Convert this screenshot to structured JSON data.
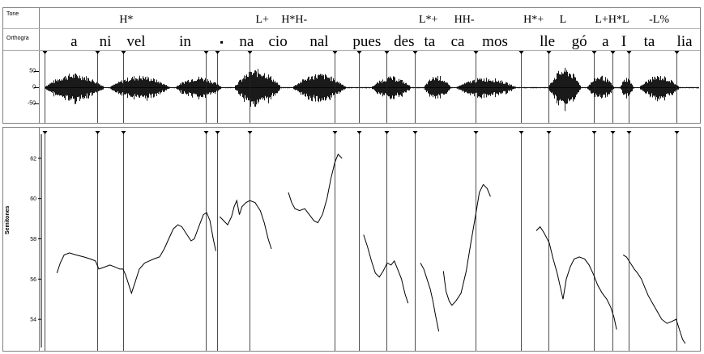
{
  "tiers": {
    "tone_label": "Tone",
    "ortho_label": "Orthogra"
  },
  "tones": [
    {
      "text": "H*",
      "t": 0.125
    },
    {
      "text": "L+",
      "t": 0.333
    },
    {
      "text": "H*H-",
      "t": 0.382
    },
    {
      "text": "L*+",
      "t": 0.587
    },
    {
      "text": "HH-",
      "t": 0.642
    },
    {
      "text": "H*+",
      "t": 0.748
    },
    {
      "text": "L",
      "t": 0.793
    },
    {
      "text": "L+H*L",
      "t": 0.868
    },
    {
      "text": "-L%",
      "t": 0.94
    }
  ],
  "syllables": [
    {
      "text": "a",
      "t": 0.045
    },
    {
      "text": "ni",
      "t": 0.093
    },
    {
      "text": "vel",
      "t": 0.14
    },
    {
      "text": "in",
      "t": 0.215
    },
    {
      "text": "▪",
      "t": 0.271
    },
    {
      "text": "na",
      "t": 0.309
    },
    {
      "text": "cio",
      "t": 0.357
    },
    {
      "text": "nal",
      "t": 0.42
    },
    {
      "text": "pues",
      "t": 0.493
    },
    {
      "text": "des",
      "t": 0.55
    },
    {
      "text": "ta",
      "t": 0.589
    },
    {
      "text": "ca",
      "t": 0.632
    },
    {
      "text": "mos",
      "t": 0.689
    },
    {
      "text": "lle",
      "t": 0.769
    },
    {
      "text": "gó",
      "t": 0.818
    },
    {
      "text": "a",
      "t": 0.858
    },
    {
      "text": "I",
      "t": 0.886
    },
    {
      "text": "ta",
      "t": 0.925
    },
    {
      "text": "lia",
      "t": 0.979
    }
  ],
  "boundaries": [
    0.0,
    0.081,
    0.12,
    0.247,
    0.264,
    0.314,
    0.444,
    0.481,
    0.523,
    0.566,
    0.659,
    0.729,
    0.771,
    0.84,
    0.869,
    0.894,
    0.966
  ],
  "waveform": {
    "ticks": [
      "50",
      "0",
      "-50"
    ]
  },
  "chart_data": {
    "type": "line",
    "ylabel": "Semitones",
    "yticks": [
      62,
      60,
      58,
      56,
      54
    ],
    "ylim": [
      52.6,
      63.2
    ],
    "xlim": [
      0,
      1
    ],
    "segments": [
      [
        [
          0.019,
          56.3
        ],
        [
          0.024,
          56.8
        ],
        [
          0.03,
          57.2
        ],
        [
          0.038,
          57.3
        ],
        [
          0.048,
          57.2
        ],
        [
          0.06,
          57.1
        ],
        [
          0.07,
          57.0
        ],
        [
          0.078,
          56.9
        ],
        [
          0.083,
          56.5
        ],
        [
          0.092,
          56.6
        ],
        [
          0.1,
          56.7
        ],
        [
          0.108,
          56.6
        ],
        [
          0.115,
          56.5
        ],
        [
          0.12,
          56.5
        ],
        [
          0.124,
          56.2
        ],
        [
          0.129,
          55.7
        ],
        [
          0.133,
          55.3
        ],
        [
          0.138,
          55.8
        ],
        [
          0.145,
          56.5
        ],
        [
          0.153,
          56.8
        ],
        [
          0.16,
          56.9
        ],
        [
          0.167,
          57.0
        ],
        [
          0.176,
          57.1
        ],
        [
          0.183,
          57.5
        ],
        [
          0.19,
          58.0
        ],
        [
          0.197,
          58.5
        ],
        [
          0.204,
          58.7
        ],
        [
          0.21,
          58.6
        ],
        [
          0.218,
          58.2
        ],
        [
          0.224,
          57.9
        ],
        [
          0.229,
          58.0
        ],
        [
          0.237,
          58.7
        ],
        [
          0.243,
          59.2
        ],
        [
          0.248,
          59.3
        ],
        [
          0.253,
          58.9
        ],
        [
          0.258,
          58.0
        ],
        [
          0.262,
          57.4
        ]
      ],
      [
        [
          0.268,
          59.1
        ],
        [
          0.274,
          58.9
        ],
        [
          0.28,
          58.7
        ],
        [
          0.286,
          59.1
        ],
        [
          0.29,
          59.6
        ],
        [
          0.294,
          59.9
        ],
        [
          0.298,
          59.2
        ],
        [
          0.302,
          59.6
        ],
        [
          0.308,
          59.8
        ],
        [
          0.314,
          59.9
        ],
        [
          0.322,
          59.8
        ],
        [
          0.33,
          59.4
        ],
        [
          0.336,
          58.8
        ],
        [
          0.342,
          58.0
        ],
        [
          0.347,
          57.5
        ]
      ],
      [
        [
          0.373,
          60.3
        ],
        [
          0.378,
          59.8
        ],
        [
          0.383,
          59.5
        ],
        [
          0.39,
          59.4
        ],
        [
          0.398,
          59.5
        ],
        [
          0.405,
          59.2
        ],
        [
          0.412,
          58.9
        ],
        [
          0.418,
          58.8
        ],
        [
          0.425,
          59.2
        ],
        [
          0.432,
          60.0
        ],
        [
          0.438,
          61.0
        ],
        [
          0.444,
          61.8
        ],
        [
          0.449,
          62.2
        ],
        [
          0.455,
          62.0
        ]
      ],
      [
        [
          0.488,
          58.2
        ],
        [
          0.494,
          57.6
        ],
        [
          0.5,
          56.9
        ],
        [
          0.506,
          56.3
        ],
        [
          0.512,
          56.1
        ],
        [
          0.518,
          56.4
        ],
        [
          0.524,
          56.8
        ],
        [
          0.53,
          56.7
        ],
        [
          0.535,
          56.9
        ],
        [
          0.54,
          56.5
        ],
        [
          0.546,
          56.0
        ],
        [
          0.551,
          55.3
        ],
        [
          0.556,
          54.8
        ]
      ],
      [
        [
          0.575,
          56.8
        ],
        [
          0.58,
          56.5
        ],
        [
          0.585,
          56.0
        ],
        [
          0.59,
          55.5
        ],
        [
          0.594,
          54.9
        ],
        [
          0.598,
          54.2
        ],
        [
          0.603,
          53.4
        ]
      ],
      [
        [
          0.61,
          56.4
        ],
        [
          0.614,
          55.4
        ],
        [
          0.619,
          54.9
        ],
        [
          0.623,
          54.7
        ],
        [
          0.629,
          54.9
        ],
        [
          0.637,
          55.3
        ],
        [
          0.645,
          56.4
        ],
        [
          0.652,
          57.8
        ],
        [
          0.66,
          59.3
        ],
        [
          0.665,
          60.3
        ],
        [
          0.671,
          60.7
        ],
        [
          0.677,
          60.5
        ],
        [
          0.682,
          60.1
        ]
      ],
      [
        [
          0.752,
          58.4
        ],
        [
          0.758,
          58.6
        ],
        [
          0.764,
          58.3
        ],
        [
          0.772,
          57.8
        ],
        [
          0.778,
          57.0
        ],
        [
          0.784,
          56.3
        ],
        [
          0.789,
          55.6
        ],
        [
          0.793,
          55.0
        ],
        [
          0.798,
          56.0
        ],
        [
          0.804,
          56.6
        ],
        [
          0.81,
          57.0
        ],
        [
          0.818,
          57.1
        ],
        [
          0.826,
          57.0
        ],
        [
          0.833,
          56.7
        ],
        [
          0.84,
          56.2
        ],
        [
          0.846,
          55.7
        ],
        [
          0.853,
          55.3
        ],
        [
          0.86,
          55.0
        ],
        [
          0.866,
          54.6
        ],
        [
          0.871,
          54.1
        ],
        [
          0.875,
          53.5
        ]
      ],
      [
        [
          0.885,
          57.2
        ],
        [
          0.89,
          57.1
        ],
        [
          0.896,
          56.8
        ],
        [
          0.902,
          56.5
        ],
        [
          0.907,
          56.3
        ],
        [
          0.913,
          56.0
        ],
        [
          0.918,
          55.6
        ],
        [
          0.923,
          55.2
        ],
        [
          0.93,
          54.8
        ],
        [
          0.937,
          54.4
        ],
        [
          0.944,
          54.0
        ],
        [
          0.952,
          53.8
        ],
        [
          0.96,
          53.9
        ],
        [
          0.966,
          54.0
        ],
        [
          0.971,
          53.5
        ],
        [
          0.976,
          53.0
        ],
        [
          0.98,
          52.8
        ]
      ]
    ]
  }
}
